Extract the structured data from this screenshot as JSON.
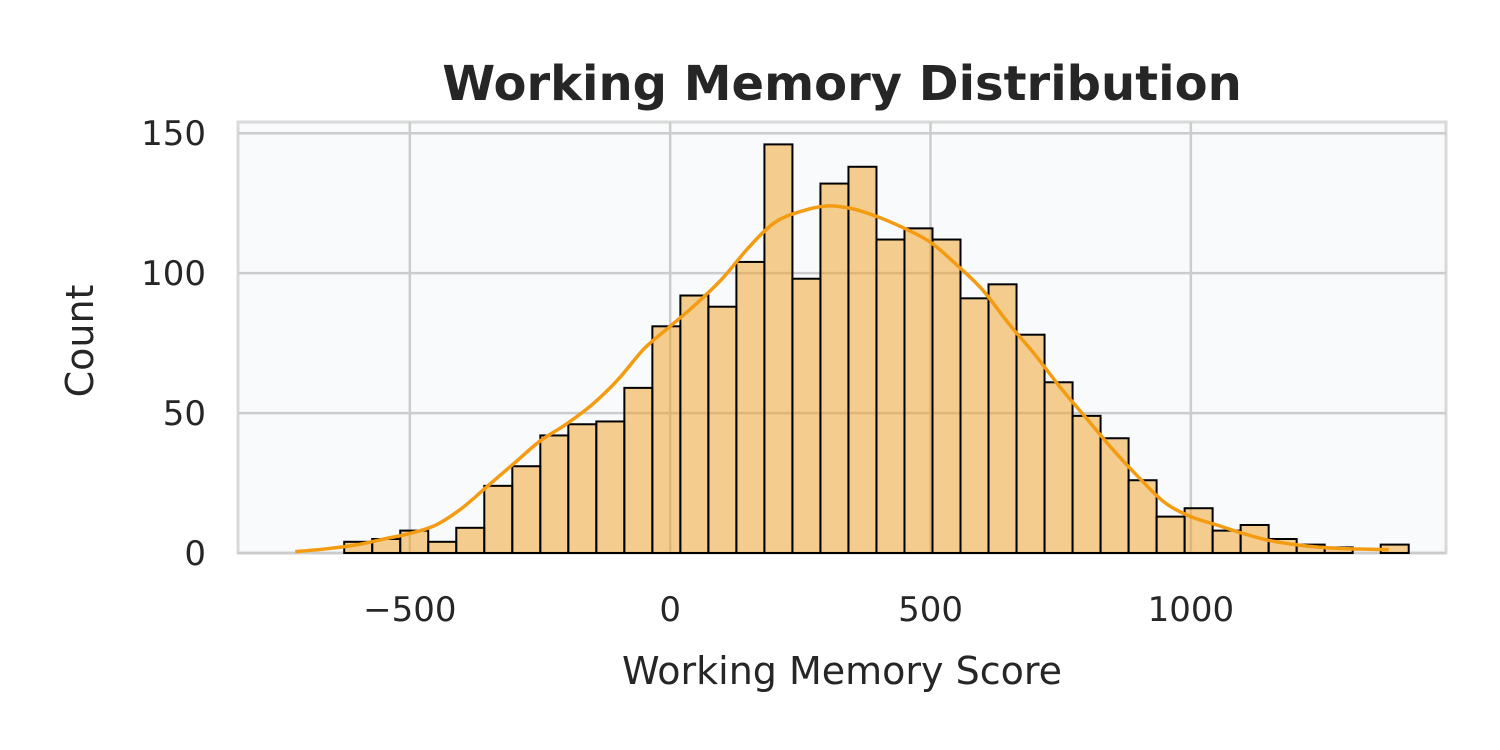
{
  "chart_data": {
    "type": "bar",
    "title": "Working Memory Distribution",
    "xlabel": "Working Memory Score",
    "ylabel": "Count",
    "xlim": [
      -830,
      1490
    ],
    "ylim": [
      0,
      154
    ],
    "x_ticks": [
      -500,
      0,
      500,
      1000
    ],
    "x_tick_labels": [
      "−500",
      "0",
      "500",
      "1000"
    ],
    "y_ticks": [
      0,
      50,
      100,
      150
    ],
    "y_tick_labels": [
      "0",
      "50",
      "100",
      "150"
    ],
    "grid": true,
    "colors": {
      "bar_fill": "#f0a020",
      "bar_edge": "#000000",
      "kde_line": "#f39c12",
      "background": "#f8fafc"
    },
    "bins": {
      "start": -626,
      "width": 53.8,
      "counts": [
        4,
        5,
        8,
        4,
        9,
        24,
        31,
        42,
        46,
        47,
        59,
        81,
        92,
        88,
        104,
        146,
        98,
        132,
        138,
        112,
        116,
        112,
        91,
        96,
        78,
        61,
        49,
        41,
        26,
        13,
        16,
        8,
        10,
        5,
        3,
        2,
        0,
        3
      ]
    },
    "kde": {
      "x": [
        -720,
        -660,
        -600,
        -550,
        -500,
        -450,
        -400,
        -350,
        -300,
        -250,
        -200,
        -150,
        -100,
        -50,
        0,
        50,
        100,
        150,
        200,
        250,
        300,
        350,
        400,
        450,
        500,
        550,
        600,
        650,
        700,
        750,
        800,
        850,
        900,
        950,
        1000,
        1050,
        1100,
        1150,
        1200,
        1250,
        1300,
        1380
      ],
      "y": [
        0.5,
        1.5,
        3,
        5,
        7,
        10,
        16,
        24,
        32,
        40,
        46,
        53,
        62,
        73,
        81,
        89,
        98,
        109,
        118,
        122,
        124,
        123,
        120,
        116,
        111,
        103,
        94,
        82,
        71,
        59,
        48,
        37,
        27,
        18,
        13,
        10,
        7,
        4.5,
        3,
        2,
        1.5,
        1.2
      ]
    }
  }
}
